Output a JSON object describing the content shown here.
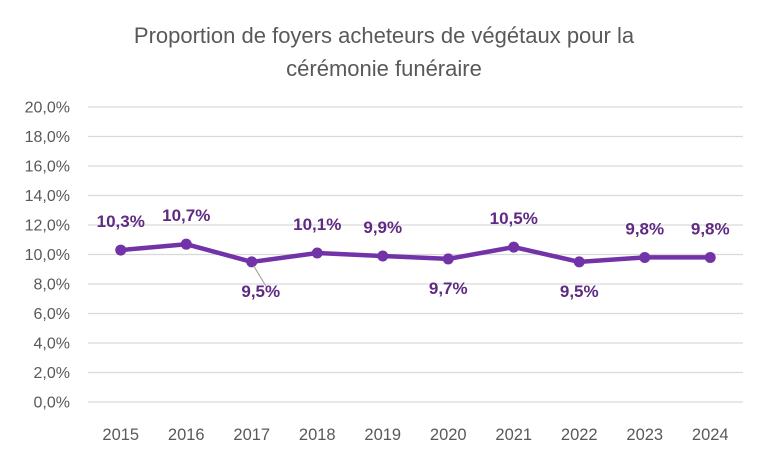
{
  "page": {
    "background": "#ffffff"
  },
  "chart_data": {
    "type": "line",
    "title": "Proportion de foyers acheteurs de végétaux pour la cérémonie funéraire",
    "title_lines": [
      "Proportion de foyers acheteurs de végétaux pour la",
      "cérémonie funéraire"
    ],
    "categories": [
      "2015",
      "2016",
      "2017",
      "2018",
      "2019",
      "2020",
      "2021",
      "2022",
      "2023",
      "2024"
    ],
    "series": [
      {
        "values": [
          10.3,
          10.7,
          9.5,
          10.1,
          9.9,
          9.7,
          10.5,
          9.5,
          9.8,
          9.8
        ],
        "data_labels": [
          "10,3%",
          "10,7%",
          "9,5%",
          "10,1%",
          "9,9%",
          "9,7%",
          "10,5%",
          "9,5%",
          "9,8%",
          "9,8%"
        ],
        "label_positions": [
          "above",
          "above",
          "below",
          "above",
          "above",
          "below",
          "above",
          "below",
          "above",
          "above"
        ]
      }
    ],
    "xlabel": "",
    "ylabel": "",
    "ylim": [
      0,
      20
    ],
    "ytick_labels": [
      "0,0%",
      "2,0%",
      "4,0%",
      "6,0%",
      "8,0%",
      "10,0%",
      "12,0%",
      "14,0%",
      "16,0%",
      "18,0%",
      "20,0%"
    ],
    "grid": true,
    "legend": false,
    "leader_line_category": "2017",
    "colors": {
      "line": "#7333A8",
      "marker": "#7333A8",
      "data_label": "#5F2A82",
      "axis_text": "#595959",
      "title_text": "#595959",
      "gridline": "#D9D9D9",
      "leader_line": "#A6A6A6"
    }
  }
}
